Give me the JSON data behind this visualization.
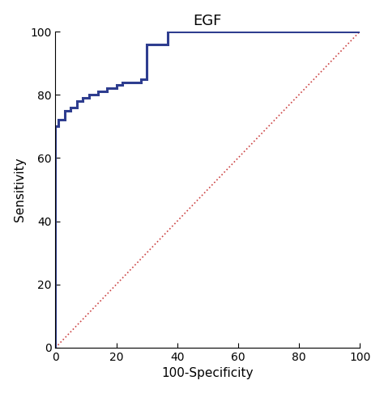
{
  "title": "EGF",
  "xlabel": "100-Specificity",
  "ylabel": "Sensitivity",
  "xlim": [
    0,
    100
  ],
  "ylim": [
    0,
    100
  ],
  "xticks": [
    0,
    20,
    40,
    60,
    80,
    100
  ],
  "yticks": [
    0,
    20,
    40,
    60,
    80,
    100
  ],
  "roc_x": [
    0,
    0,
    1,
    1,
    3,
    3,
    5,
    5,
    7,
    7,
    9,
    9,
    11,
    11,
    14,
    14,
    17,
    17,
    20,
    20,
    22,
    22,
    28,
    28,
    30,
    30,
    35,
    35,
    37,
    37,
    40,
    40,
    45,
    50,
    55,
    100
  ],
  "roc_y": [
    0,
    70,
    70,
    72,
    72,
    75,
    75,
    76,
    76,
    78,
    78,
    79,
    79,
    80,
    80,
    81,
    81,
    82,
    82,
    83,
    83,
    84,
    84,
    85,
    85,
    96,
    96,
    96,
    96,
    100,
    100,
    100,
    100,
    100,
    100,
    100
  ],
  "roc_color": "#2E3D8F",
  "roc_linewidth": 2.2,
  "diag_color": "#CC4444",
  "diag_linestyle": "dotted",
  "diag_linewidth": 1.2,
  "title_fontsize": 13,
  "label_fontsize": 11,
  "tick_fontsize": 10,
  "background_color": "#ffffff",
  "figsize": [
    4.74,
    4.86
  ],
  "dpi": 100
}
